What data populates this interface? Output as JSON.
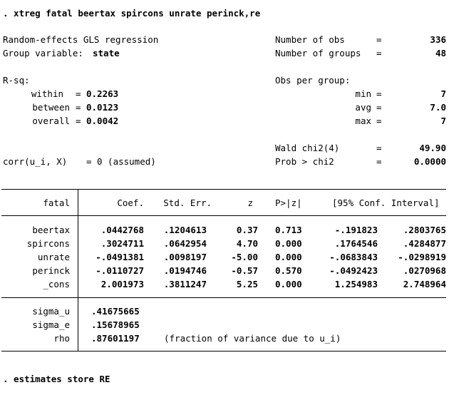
{
  "command": ". xtreg fatal beertax spircons unrate perinck,re",
  "header": {
    "model": "Random-effects GLS regression",
    "group_label": "Group variable:",
    "group_var": "state",
    "nobs_label": "Number of obs",
    "nobs": "336",
    "ngroups_label": "Number of groups",
    "ngroups": "48",
    "rsq_label": "R-sq:",
    "within_label": "within",
    "within": "0.2263",
    "between_label": "between",
    "between": "0.0123",
    "overall_label": "overall",
    "overall": "0.0042",
    "obs_per_group_label": "Obs per group:",
    "min_label": "min",
    "min": "7",
    "avg_label": "avg",
    "avg": "7.0",
    "max_label": "max",
    "max": "7",
    "wald_label": "Wald chi2(4)",
    "wald": "49.90",
    "prob_label": "Prob > chi2",
    "prob": "0.0000",
    "corr_label": "corr(u_i, X)",
    "corr": "0 (assumed)",
    "eq": "="
  },
  "table": {
    "depvar": "fatal",
    "columns": [
      "Coef.",
      "Std. Err.",
      "z",
      "P>|z|",
      "[95% Conf. Interval]"
    ],
    "rows": [
      {
        "var": "beertax",
        "coef": ".0442768",
        "se": ".1204613",
        "z": "0.37",
        "p": "0.713",
        "lo": "-.191823",
        "hi": ".2803765"
      },
      {
        "var": "spircons",
        "coef": ".3024711",
        "se": ".0642954",
        "z": "4.70",
        "p": "0.000",
        "lo": ".1764546",
        "hi": ".4284877"
      },
      {
        "var": "unrate",
        "coef": "-.0491381",
        "se": ".0098197",
        "z": "-5.00",
        "p": "0.000",
        "lo": "-.0683843",
        "hi": "-.0298919"
      },
      {
        "var": "perinck",
        "coef": "-.0110727",
        "se": ".0194746",
        "z": "-0.57",
        "p": "0.570",
        "lo": "-.0492423",
        "hi": ".0270968"
      },
      {
        "var": "_cons",
        "coef": "2.001973",
        "se": ".3811247",
        "z": "5.25",
        "p": "0.000",
        "lo": "1.254983",
        "hi": "2.748964"
      }
    ],
    "sigma_u_label": "sigma_u",
    "sigma_u": ".41675665",
    "sigma_e_label": "sigma_e",
    "sigma_e": ".15678965",
    "rho_label": "rho",
    "rho": ".87601197",
    "rho_note": "(fraction of variance due to u_i)"
  },
  "footer_command": ". estimates store RE"
}
